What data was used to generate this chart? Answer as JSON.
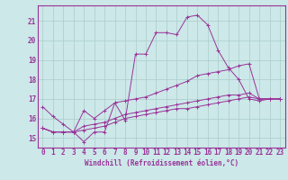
{
  "xlabel": "Windchill (Refroidissement éolien,°C)",
  "bg_color": "#cce8e8",
  "grid_color": "#aacccc",
  "line_color": "#993399",
  "ylim": [
    14.5,
    21.8
  ],
  "xlim": [
    -0.5,
    23.5
  ],
  "yticks": [
    15,
    16,
    17,
    18,
    19,
    20,
    21
  ],
  "xticks": [
    0,
    1,
    2,
    3,
    4,
    5,
    6,
    7,
    8,
    9,
    10,
    11,
    12,
    13,
    14,
    15,
    16,
    17,
    18,
    19,
    20,
    21,
    22,
    23
  ],
  "series": [
    [
      16.6,
      16.1,
      15.7,
      15.3,
      14.8,
      15.3,
      15.3,
      16.8,
      15.9,
      19.3,
      19.3,
      20.4,
      20.4,
      20.3,
      21.2,
      21.3,
      20.8,
      19.5,
      18.6,
      18.0,
      17.0,
      16.9,
      17.0,
      17.0
    ],
    [
      15.5,
      15.3,
      15.3,
      15.3,
      16.4,
      16.0,
      16.4,
      16.8,
      16.9,
      17.0,
      17.1,
      17.3,
      17.5,
      17.7,
      17.9,
      18.2,
      18.3,
      18.4,
      18.5,
      18.7,
      18.8,
      17.0,
      17.0,
      17.0
    ],
    [
      15.5,
      15.3,
      15.3,
      15.3,
      15.6,
      15.7,
      15.8,
      16.0,
      16.2,
      16.3,
      16.4,
      16.5,
      16.6,
      16.7,
      16.8,
      16.9,
      17.0,
      17.1,
      17.2,
      17.2,
      17.3,
      17.0,
      17.0,
      17.0
    ],
    [
      15.5,
      15.3,
      15.3,
      15.3,
      15.4,
      15.5,
      15.6,
      15.8,
      16.0,
      16.1,
      16.2,
      16.3,
      16.4,
      16.5,
      16.5,
      16.6,
      16.7,
      16.8,
      16.9,
      17.0,
      17.1,
      17.0,
      17.0,
      17.0
    ]
  ],
  "xlabel_fontsize": 5.5,
  "tick_fontsize": 5.5,
  "ylabel_fontsize": 5.5
}
